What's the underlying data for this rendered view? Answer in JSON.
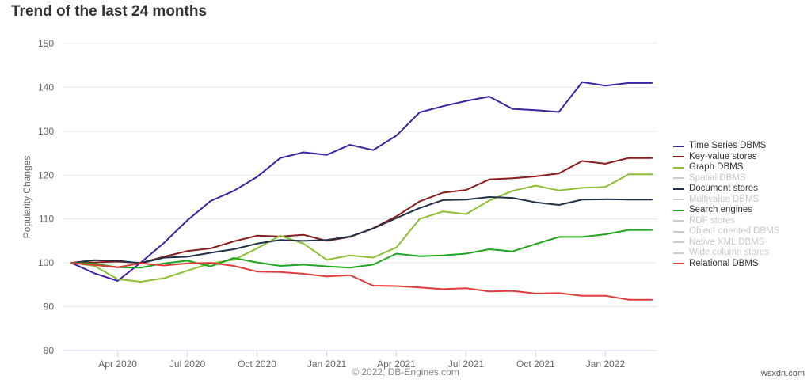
{
  "header": {
    "title": "Trend of the last 24 months"
  },
  "credits": "© 2022, DB-Engines.com",
  "watermark": "wsxdn.com",
  "legend_items": [
    {
      "label": "Time Series DBMS",
      "color": "#3d22a6",
      "visible": true
    },
    {
      "label": "Key-value stores",
      "color": "#8b1c1c",
      "visible": true
    },
    {
      "label": "Graph DBMS",
      "color": "#8dbf35",
      "visible": true
    },
    {
      "label": "Spatial DBMS",
      "color": "#cccccc",
      "visible": false
    },
    {
      "label": "Document stores",
      "color": "#1f3048",
      "visible": true
    },
    {
      "label": "Multivalue DBMS",
      "color": "#cccccc",
      "visible": false
    },
    {
      "label": "Search engines",
      "color": "#1fa51f",
      "visible": true
    },
    {
      "label": "RDF stores",
      "color": "#cccccc",
      "visible": false
    },
    {
      "label": "Object oriented DBMS",
      "color": "#cccccc",
      "visible": false
    },
    {
      "label": "Native XML DBMS",
      "color": "#cccccc",
      "visible": false
    },
    {
      "label": "Wide column stores",
      "color": "#cccccc",
      "visible": false
    },
    {
      "label": "Relational DBMS",
      "color": "#e03c3c",
      "visible": true
    }
  ],
  "chart_data": {
    "type": "line",
    "ylabel": "Popularity Changes",
    "ylim": [
      80,
      150
    ],
    "yticks": [
      80,
      90,
      100,
      110,
      120,
      130,
      140,
      150
    ],
    "x_dates": [
      "2020-02",
      "2020-03",
      "2020-04",
      "2020-05",
      "2020-06",
      "2020-07",
      "2020-08",
      "2020-09",
      "2020-10",
      "2020-11",
      "2020-12",
      "2021-01",
      "2021-02",
      "2021-03",
      "2021-04",
      "2021-05",
      "2021-06",
      "2021-07",
      "2021-08",
      "2021-09",
      "2021-10",
      "2021-11",
      "2021-12",
      "2022-01",
      "2022-02",
      "2022-03"
    ],
    "xtick_labels": [
      {
        "date": "2020-04",
        "label": "Apr 2020"
      },
      {
        "date": "2020-07",
        "label": "Jul 2020"
      },
      {
        "date": "2020-10",
        "label": "Oct 2020"
      },
      {
        "date": "2021-01",
        "label": "Jan 2021"
      },
      {
        "date": "2021-04",
        "label": "Apr 2021"
      },
      {
        "date": "2021-07",
        "label": "Jul 2021"
      },
      {
        "date": "2021-10",
        "label": "Oct 2021"
      },
      {
        "date": "2022-01",
        "label": "Jan 2022"
      }
    ],
    "grid": "horizontal",
    "legend_position": "right",
    "series": [
      {
        "name": "Time Series DBMS",
        "color": "#3d22a6",
        "values": [
          100,
          97.6,
          95.9,
          100.1,
          104.6,
          109.7,
          114.1,
          116.4,
          119.6,
          123.9,
          125.2,
          124.6,
          126.9,
          125.7,
          129.0,
          134.3,
          135.7,
          136.9,
          137.9,
          135.1,
          134.8,
          134.4,
          141.2,
          140.4,
          141.0,
          141.0
        ]
      },
      {
        "name": "Key-value stores",
        "color": "#8b1c1c",
        "values": [
          100,
          100.1,
          100.3,
          100.0,
          101.4,
          102.7,
          103.3,
          104.9,
          106.2,
          106.0,
          106.4,
          105.0,
          105.9,
          107.9,
          110.6,
          114.0,
          116.0,
          116.6,
          119.0,
          119.3,
          119.7,
          120.4,
          123.2,
          122.6,
          123.9,
          123.9
        ]
      },
      {
        "name": "Graph DBMS",
        "color": "#8dbf35",
        "values": [
          100,
          99.3,
          96.3,
          95.7,
          96.5,
          98.2,
          99.9,
          100.7,
          103.3,
          106.2,
          104.4,
          100.7,
          101.7,
          101.2,
          103.5,
          110.0,
          111.7,
          111.1,
          114.2,
          116.4,
          117.6,
          116.5,
          117.1,
          117.3,
          120.2,
          120.2
        ]
      },
      {
        "name": "Document stores",
        "color": "#1f3048",
        "values": [
          100,
          100.6,
          100.5,
          99.9,
          101.2,
          101.4,
          102.3,
          103.1,
          104.4,
          105.2,
          105.0,
          105.2,
          106.0,
          107.8,
          110.2,
          112.5,
          114.3,
          114.4,
          115.0,
          114.8,
          113.8,
          113.2,
          114.4,
          114.5,
          114.4,
          114.4
        ]
      },
      {
        "name": "Search engines",
        "color": "#1fa51f",
        "values": [
          100,
          99.8,
          99.0,
          98.9,
          99.9,
          100.5,
          99.2,
          101.1,
          100.1,
          99.3,
          99.6,
          99.2,
          98.9,
          99.6,
          102.1,
          101.5,
          101.7,
          102.1,
          103.1,
          102.6,
          104.3,
          105.9,
          105.9,
          106.5,
          107.5,
          107.5
        ]
      },
      {
        "name": "Relational DBMS",
        "color": "#e03c3c",
        "values": [
          100,
          99.5,
          99.0,
          99.9,
          99.4,
          99.9,
          100.0,
          99.3,
          98.0,
          97.9,
          97.5,
          96.9,
          97.2,
          94.8,
          94.7,
          94.4,
          94.0,
          94.2,
          93.5,
          93.6,
          93.0,
          93.1,
          92.5,
          92.5,
          91.6,
          91.6
        ]
      }
    ]
  }
}
